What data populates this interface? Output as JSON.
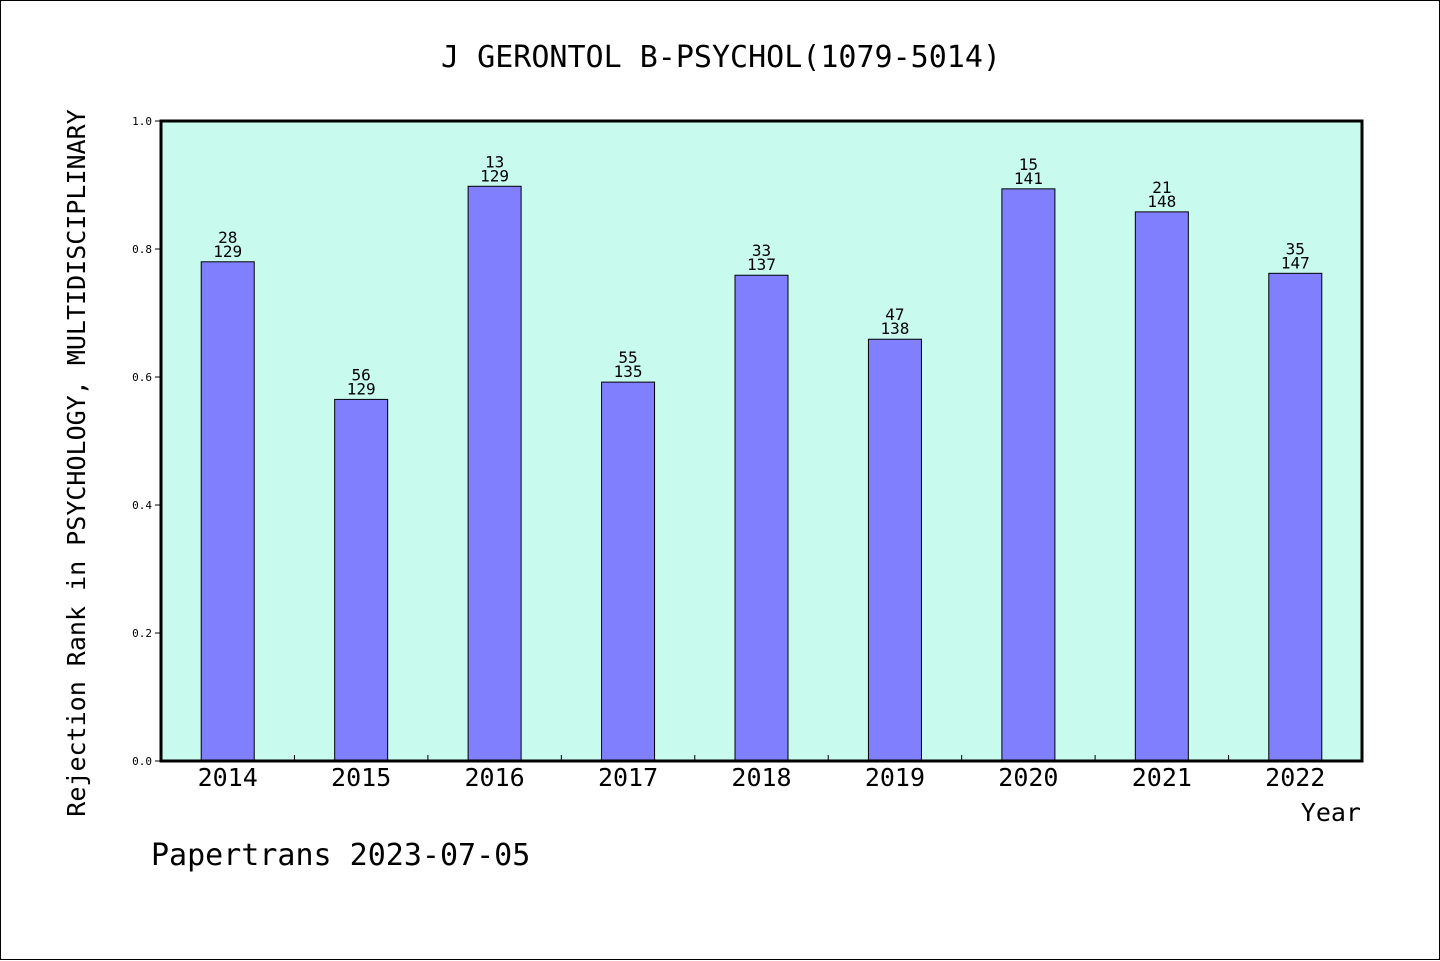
{
  "chart_data": {
    "type": "bar",
    "title": "J GERONTOL B-PSYCHOL(1079-5014)",
    "xlabel": "Year",
    "ylabel": "Rejection Rank in PSYCHOLOGY, MULTIDISCIPLINARY",
    "ylim": [
      0,
      1.0
    ],
    "yticks": [
      "0.0",
      "0.2",
      "0.4",
      "0.6",
      "0.8",
      "1.0"
    ],
    "grid": false,
    "plot_background": "#c8faee",
    "bar_color": "#8080ff",
    "categories": [
      "2014",
      "2015",
      "2016",
      "2017",
      "2018",
      "2019",
      "2020",
      "2021",
      "2022"
    ],
    "values": [
      0.78,
      0.565,
      0.898,
      0.592,
      0.759,
      0.659,
      0.894,
      0.858,
      0.762
    ],
    "labels_top": [
      "28",
      "56",
      "13",
      "55",
      "33",
      "47",
      "15",
      "21",
      "35"
    ],
    "labels_bottom": [
      "129",
      "129",
      "129",
      "135",
      "137",
      "138",
      "141",
      "148",
      "147"
    ]
  },
  "footer": {
    "text": "Papertrans 2023-07-05"
  }
}
